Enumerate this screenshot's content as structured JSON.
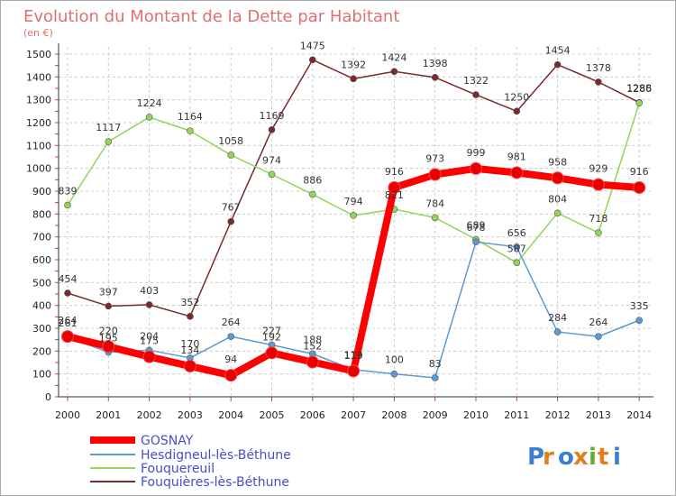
{
  "title": "Evolution du Montant de la Dette par Habitant",
  "unit": "(en €)",
  "logo": "Proxiti",
  "chart_data": {
    "type": "line",
    "title": "Evolution du Montant de la Dette par Habitant",
    "ylabel": "(en €)",
    "xlabel": "",
    "ylim": [
      0,
      1500
    ],
    "yticks": [
      0,
      100,
      200,
      300,
      400,
      500,
      600,
      700,
      800,
      900,
      1000,
      1100,
      1200,
      1300,
      1400,
      1500
    ],
    "grid": true,
    "legend_position": "bottom-left",
    "categories": [
      "2000",
      "2001",
      "2002",
      "2003",
      "2004",
      "2005",
      "2006",
      "2007",
      "2008",
      "2009",
      "2010",
      "2011",
      "2012",
      "2013",
      "2014"
    ],
    "series": [
      {
        "name": "GOSNAY",
        "color": "#ff0000",
        "values": [
          264,
          220,
          175,
          134,
          94,
          192,
          152,
          113,
          916,
          973,
          999,
          981,
          958,
          929,
          916
        ]
      },
      {
        "name": "Hesdigneul-lès-Béthune",
        "color": "#5b9bd5",
        "values": [
          261,
          195,
          204,
          170,
          264,
          227,
          188,
          119,
          100,
          83,
          678,
          656,
          284,
          264,
          335
        ]
      },
      {
        "name": "Fouquereuil",
        "color": "#8fd65a",
        "values": [
          839,
          1117,
          1224,
          1164,
          1058,
          974,
          886,
          794,
          821,
          784,
          689,
          587,
          804,
          718,
          1286
        ]
      },
      {
        "name": "Fouquières-lès-Béthune",
        "color": "#7a2a2a",
        "values": [
          454,
          397,
          403,
          352,
          767,
          1169,
          1475,
          1392,
          1424,
          1398,
          1322,
          1250,
          1454,
          1378,
          1288
        ]
      }
    ]
  }
}
